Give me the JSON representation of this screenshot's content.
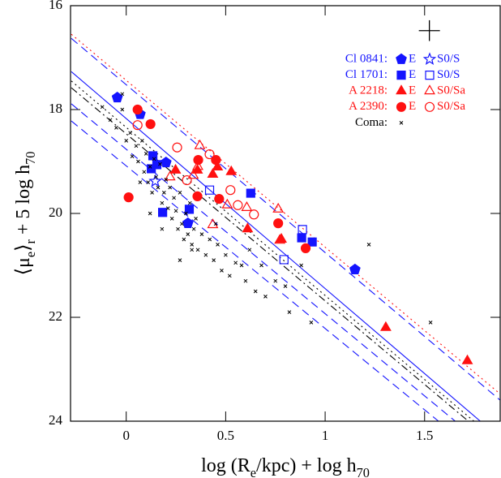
{
  "chart_data": {
    "type": "scatter",
    "xlabel": [
      {
        "text": "log (R"
      },
      {
        "text": "e",
        "sub": true
      },
      {
        "text": "/kpc) + log h"
      },
      {
        "text": "70",
        "sub": true
      }
    ],
    "ylabel": [
      {
        "text": "⟨μ"
      },
      {
        "text": "e",
        "sub": true
      },
      {
        "text": "⟩"
      },
      {
        "text": "r",
        "sub": true
      },
      {
        "text": " + 5 log h"
      },
      {
        "text": "70",
        "sub": true
      }
    ],
    "xlim": [
      -0.28,
      1.88
    ],
    "ylim": [
      24,
      16
    ],
    "xticks": [
      0,
      0.5,
      1,
      1.5
    ],
    "yticks": [
      16,
      18,
      20,
      22,
      24
    ],
    "groups": [
      {
        "name": "Cl 0841:",
        "color": "#1414ff",
        "series": [
          {
            "name": "E",
            "marker": "pentagon",
            "filled": true,
            "x": [
              -0.045,
              0.07,
              0.2,
              0.31,
              1.15
            ],
            "values": [
              17.77,
              18.09,
              19.02,
              20.19,
              21.08
            ]
          },
          {
            "name": "S0/S",
            "marker": "star",
            "filled": false,
            "x": [
              0.146
            ],
            "values": [
              19.38
            ]
          }
        ]
      },
      {
        "name": "Cl 1701:",
        "color": "#1414ff",
        "series": [
          {
            "name": "E",
            "marker": "square",
            "filled": true,
            "x": [
              0.134,
              0.154,
              0.126,
              0.183,
              0.317,
              0.626,
              0.882,
              0.935
            ],
            "values": [
              18.89,
              19.06,
              19.14,
              19.98,
              19.92,
              19.61,
              20.47,
              20.55
            ]
          },
          {
            "name": "S0/S",
            "marker": "square",
            "filled": false,
            "x": [
              0.419,
              0.886,
              0.793
            ],
            "values": [
              19.55,
              20.31,
              20.89
            ]
          }
        ]
      },
      {
        "name": "A 2218:",
        "color": "#ff1010",
        "series": [
          {
            "name": "E",
            "marker": "triangle",
            "filled": true,
            "x": [
              0.248,
              0.358,
              0.435,
              0.459,
              0.528,
              0.61,
              0.78,
              1.305,
              1.715
            ],
            "values": [
              19.17,
              19.17,
              19.25,
              19.11,
              19.2,
              20.3,
              20.5,
              22.2,
              22.84
            ]
          },
          {
            "name": "S0/Sa",
            "marker": "triangle",
            "filled": false,
            "x": [
              0.37,
              0.22,
              0.337,
              0.36,
              0.435,
              0.508,
              0.606,
              0.764,
              0.772
            ],
            "values": [
              18.7,
              19.3,
              19.27,
              19.1,
              20.22,
              19.84,
              19.89,
              19.92,
              20.52
            ]
          }
        ]
      },
      {
        "name": "A 2390:",
        "color": "#ff1010",
        "series": [
          {
            "name": "E",
            "marker": "circle",
            "filled": true,
            "x": [
              0.012,
              0.057,
              0.122,
              0.362,
              0.451,
              0.358,
              0.467,
              0.764,
              0.902
            ],
            "values": [
              19.69,
              18.0,
              18.28,
              18.97,
              18.97,
              19.67,
              19.72,
              20.19,
              20.67
            ]
          },
          {
            "name": "S0/Sa",
            "marker": "circle",
            "filled": false,
            "x": [
              0.057,
              0.256,
              0.305,
              0.419,
              0.524,
              0.561,
              0.642
            ],
            "values": [
              18.3,
              18.73,
              19.36,
              18.86,
              19.55,
              19.84,
              20.02
            ]
          }
        ]
      },
      {
        "name": "Coma:",
        "color": "#000000",
        "series": [
          {
            "marker": "x",
            "filled": false,
            "x": [
              -0.12,
              -0.08,
              -0.05,
              -0.02,
              0.0,
              0.02,
              0.03,
              0.05,
              0.06,
              0.08,
              0.09,
              0.1,
              0.11,
              0.12,
              0.13,
              0.14,
              0.15,
              0.16,
              0.17,
              0.18,
              0.19,
              0.2,
              0.21,
              0.22,
              0.23,
              0.24,
              0.25,
              0.26,
              0.27,
              0.28,
              0.29,
              0.3,
              0.31,
              0.32,
              0.33,
              0.34,
              0.35,
              0.36,
              0.38,
              0.4,
              0.42,
              0.44,
              0.46,
              0.48,
              0.5,
              0.52,
              0.55,
              0.58,
              0.6,
              0.62,
              0.65,
              0.68,
              0.7,
              0.75,
              0.8,
              0.82,
              0.88,
              0.93,
              1.22,
              1.53,
              -0.02,
              0.07,
              0.12,
              0.18,
              0.27,
              0.33,
              0.45
            ],
            "values": [
              17.95,
              18.2,
              18.35,
              17.7,
              18.6,
              18.45,
              18.9,
              18.7,
              19.0,
              18.6,
              19.2,
              18.85,
              19.4,
              19.1,
              19.6,
              18.95,
              19.3,
              19.5,
              19.05,
              19.8,
              19.6,
              19.35,
              19.9,
              19.5,
              20.1,
              19.7,
              19.95,
              20.3,
              19.6,
              20.2,
              20.5,
              20.0,
              20.4,
              19.8,
              20.6,
              20.3,
              20.1,
              20.7,
              20.4,
              20.8,
              20.5,
              20.9,
              20.6,
              21.1,
              20.8,
              21.2,
              20.95,
              21.0,
              21.3,
              20.7,
              21.5,
              21.0,
              21.6,
              21.3,
              21.4,
              21.9,
              21.0,
              22.1,
              20.6,
              22.1,
              18.0,
              19.4,
              20.0,
              20.3,
              20.9,
              20.7,
              20.2
            ]
          }
        ]
      }
    ],
    "lines": [
      {
        "color": "#1414ff",
        "style": "solid",
        "x": [
          -0.276,
          1.78
        ],
        "values": [
          17.27,
          24
        ]
      },
      {
        "color": "#1414ff",
        "style": "dashed",
        "x": [
          -0.276,
          1.878
        ],
        "values": [
          16.63,
          23.59
        ]
      },
      {
        "color": "#1414ff",
        "style": "dashed",
        "x": [
          -0.276,
          1.654
        ],
        "values": [
          17.89,
          24
        ]
      },
      {
        "color": "#1414ff",
        "style": "dashed",
        "x": [
          -0.276,
          1.57
        ],
        "values": [
          18.22,
          24
        ]
      },
      {
        "color": "#ff1010",
        "style": "dotted",
        "x": [
          -0.276,
          1.878
        ],
        "values": [
          16.55,
          23.47
        ]
      },
      {
        "color": "#000000",
        "style": "dashdot",
        "x": [
          -0.276,
          1.72
        ],
        "values": [
          17.58,
          24
        ]
      },
      {
        "color": "#000000",
        "style": "dotted",
        "x": [
          -0.276,
          1.748
        ],
        "values": [
          17.45,
          24
        ]
      }
    ],
    "error_cross": {
      "x": 1.524,
      "y": 16.48,
      "xerr": 0.053,
      "yerr": 0.2
    }
  }
}
